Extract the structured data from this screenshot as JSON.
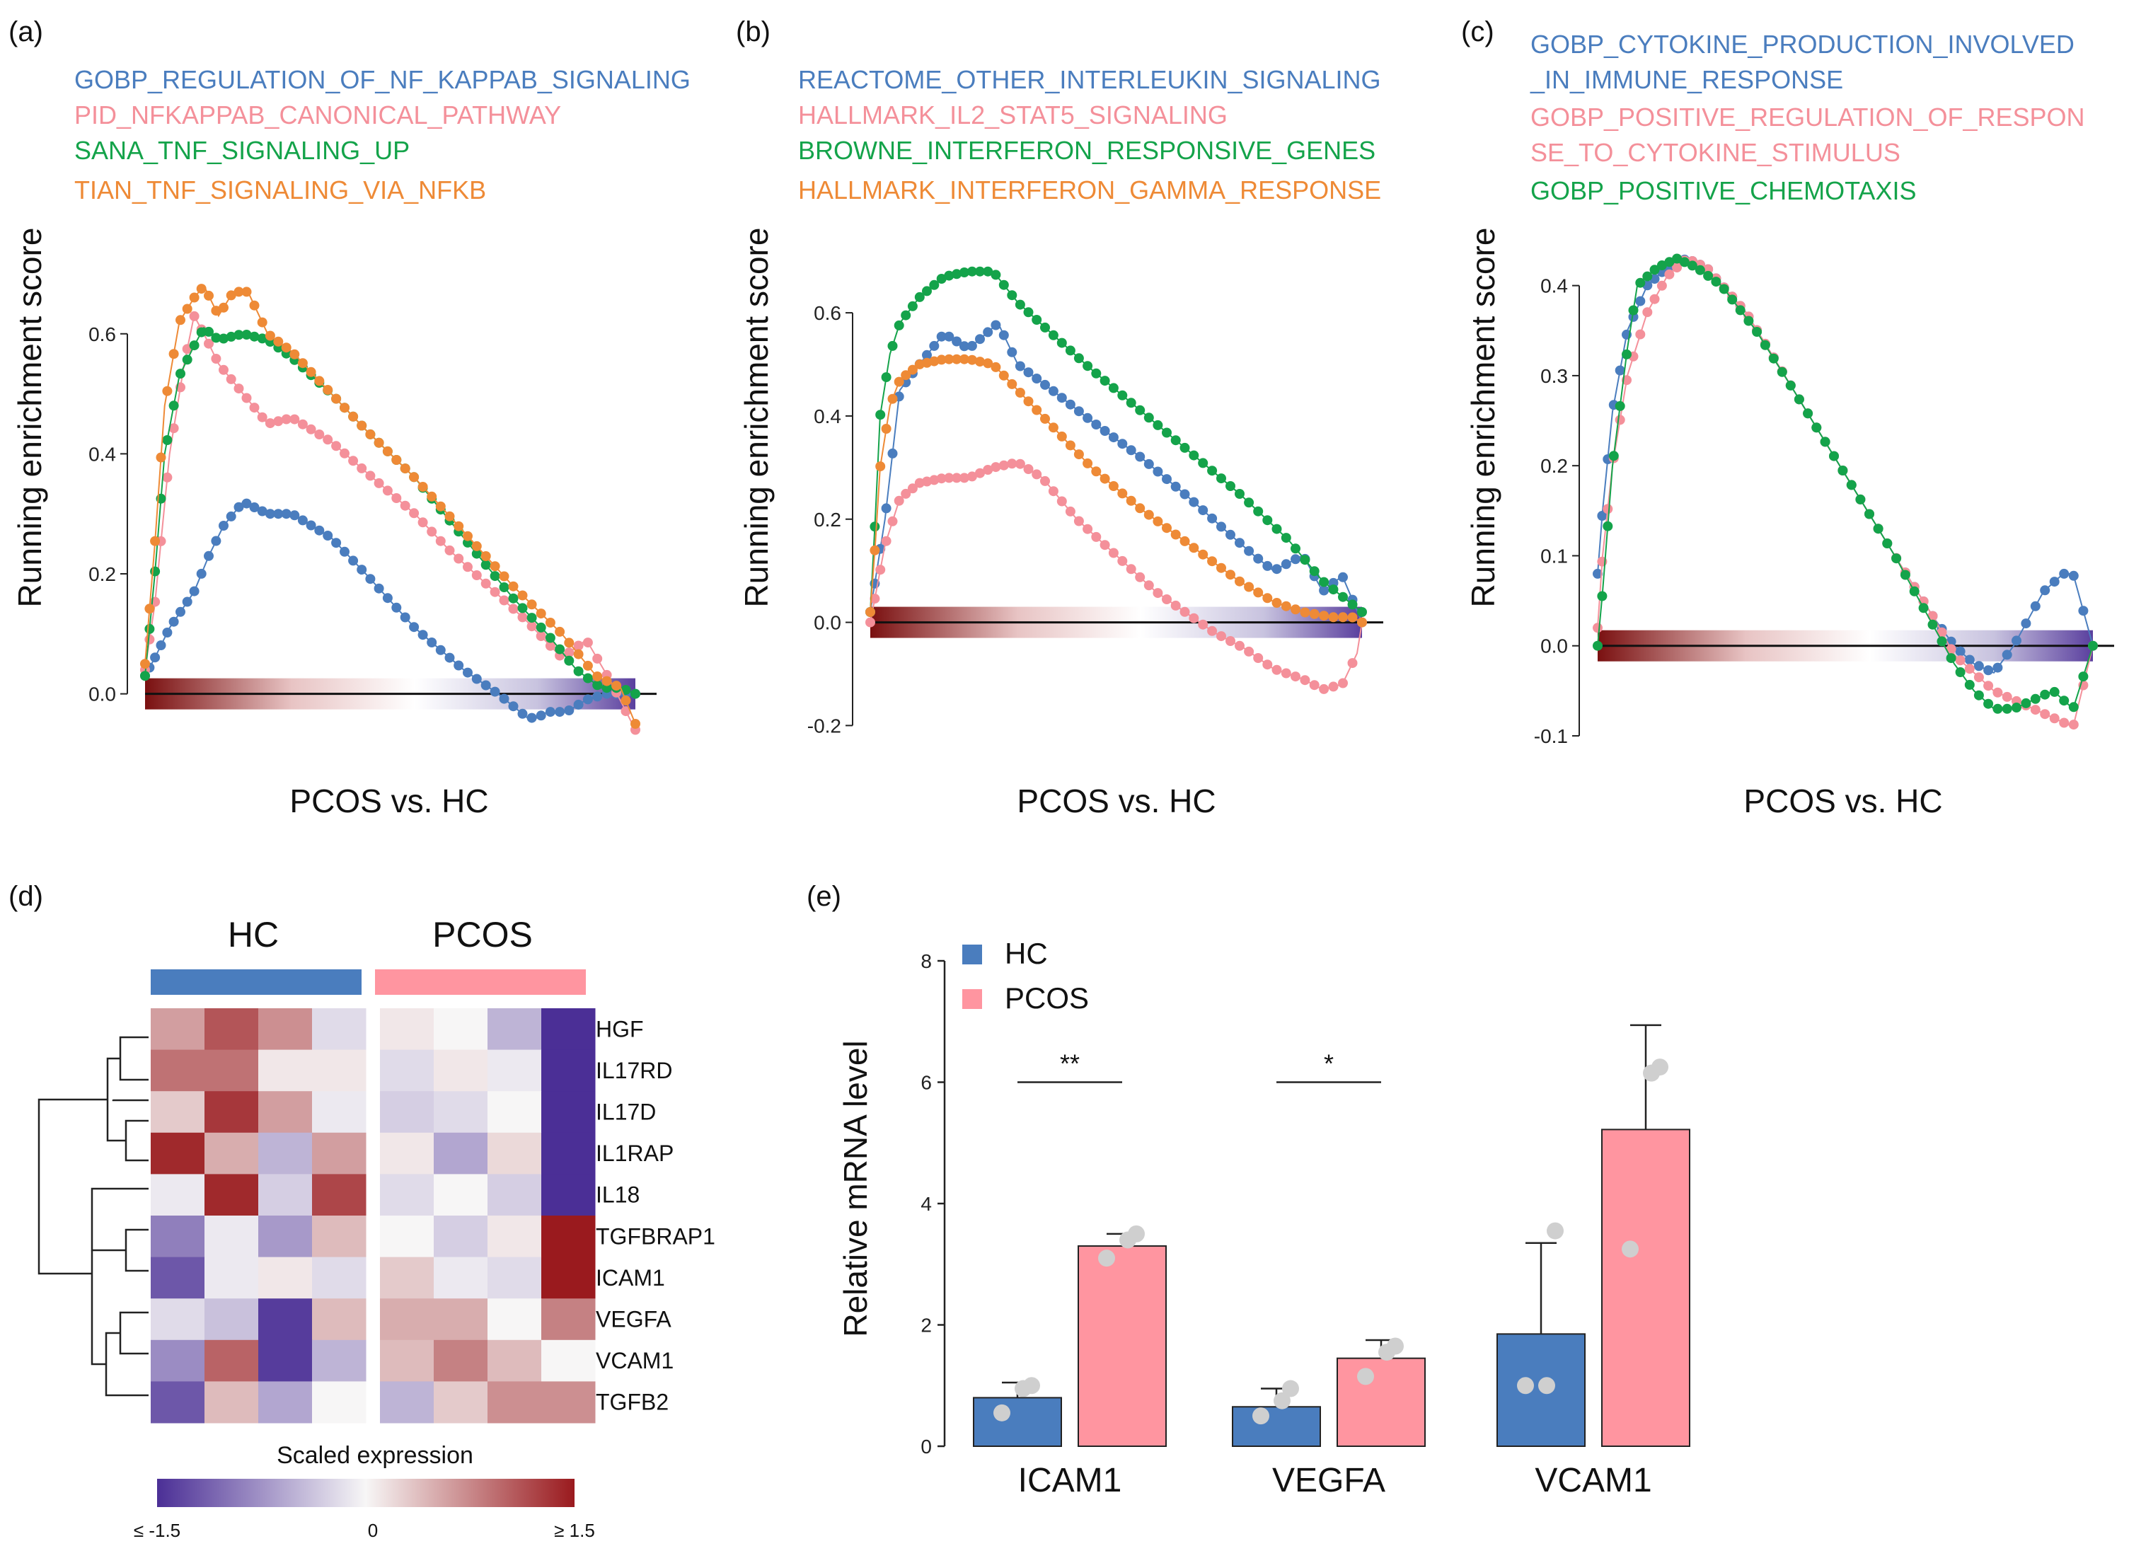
{
  "colors": {
    "blue": "#4A7DBE",
    "pink": "#F4909A",
    "green": "#14A34A",
    "orange": "#EE8A36",
    "heat_low": "#5A3F9E",
    "heat_mid": "#F7F6F6",
    "heat_high": "#9A1A1E",
    "hc_bar": "#4A7DBE",
    "pcos_bar": "#FF95A0"
  },
  "chart_data": [
    {
      "panel": "(a)",
      "type": "line",
      "gene_sets": [
        {
          "name": "GOBP_REGULATION_OF_NF_KAPPAB_SIGNALING",
          "color": "blue"
        },
        {
          "name": "PID_NFKAPPAB_CANONICAL_PATHWAY",
          "color": "pink"
        },
        {
          "name": "SANA_TNF_SIGNALING_UP",
          "color": "green"
        },
        {
          "name": "TIAN_TNF_SIGNALING_VIA_NFKB",
          "color": "orange"
        }
      ],
      "ylabel": "Running enrichment score",
      "xlabel": "PCOS vs. HC",
      "ylim": [
        -0.07,
        0.72
      ],
      "yticks": [
        "0.0",
        "0.2",
        "0.4",
        "0.6"
      ],
      "ytick_values": [
        0.0,
        0.2,
        0.4,
        0.6
      ],
      "series": [
        {
          "name": "GOBP_REGULATION_OF_NF_KAPPAB_SIGNALING",
          "color": "blue",
          "rank": [
            0,
            0.02,
            0.05,
            0.1,
            0.13,
            0.16,
            0.2,
            0.25,
            0.3,
            0.38,
            0.45,
            0.55,
            0.65,
            0.72,
            0.78,
            0.8,
            0.82,
            0.86,
            0.9,
            0.94,
            0.97,
            1.0
          ],
          "values": [
            0.03,
            0.06,
            0.11,
            0.17,
            0.23,
            0.28,
            0.32,
            0.3,
            0.3,
            0.26,
            0.2,
            0.11,
            0.04,
            0.0,
            -0.04,
            -0.04,
            -0.03,
            -0.03,
            -0.01,
            0.0,
            0.0,
            0.0
          ]
        },
        {
          "name": "PID_NFKAPPAB_CANONICAL_PATHWAY",
          "color": "pink",
          "rank": [
            0,
            0.02,
            0.05,
            0.08,
            0.1,
            0.12,
            0.15,
            0.2,
            0.25,
            0.3,
            0.38,
            0.45,
            0.55,
            0.62,
            0.7,
            0.78,
            0.85,
            0.9,
            0.95,
            1.0
          ],
          "values": [
            0.04,
            0.15,
            0.4,
            0.55,
            0.63,
            0.6,
            0.55,
            0.5,
            0.45,
            0.46,
            0.42,
            0.37,
            0.3,
            0.24,
            0.18,
            0.12,
            0.06,
            0.09,
            0.02,
            -0.06
          ]
        },
        {
          "name": "SANA_TNF_SIGNALING_UP",
          "color": "green",
          "rank": [
            0,
            0.02,
            0.04,
            0.07,
            0.1,
            0.12,
            0.15,
            0.2,
            0.25,
            0.3,
            0.38,
            0.45,
            0.55,
            0.65,
            0.75,
            0.82,
            0.88,
            0.93,
            0.97,
            1.0
          ],
          "values": [
            0.03,
            0.2,
            0.4,
            0.53,
            0.58,
            0.61,
            0.59,
            0.6,
            0.59,
            0.56,
            0.5,
            0.44,
            0.36,
            0.26,
            0.16,
            0.1,
            0.04,
            0.01,
            0.01,
            0.0
          ]
        },
        {
          "name": "TIAN_TNF_SIGNALING_VIA_NFKB",
          "color": "orange",
          "rank": [
            0,
            0.02,
            0.04,
            0.07,
            0.1,
            0.12,
            0.15,
            0.18,
            0.21,
            0.25,
            0.3,
            0.38,
            0.45,
            0.55,
            0.65,
            0.75,
            0.85,
            0.92,
            0.97,
            1.0
          ],
          "values": [
            0.05,
            0.25,
            0.48,
            0.62,
            0.66,
            0.68,
            0.63,
            0.67,
            0.67,
            0.6,
            0.57,
            0.5,
            0.44,
            0.36,
            0.27,
            0.18,
            0.1,
            0.03,
            0.01,
            -0.05
          ]
        }
      ]
    },
    {
      "panel": "(b)",
      "type": "line",
      "gene_sets": [
        {
          "name": "REACTOME_OTHER_INTERLEUKIN_SIGNALING",
          "color": "blue"
        },
        {
          "name": "HALLMARK_IL2_STAT5_SIGNALING",
          "color": "pink"
        },
        {
          "name": "BROWNE_INTERFERON_RESPONSIVE_GENES",
          "color": "green"
        },
        {
          "name": "HALLMARK_INTERFERON_GAMMA_RESPONSE",
          "color": "orange"
        }
      ],
      "ylabel": "Running enrichment score",
      "xlabel": "PCOS vs. HC",
      "ylim": [
        -0.22,
        0.74
      ],
      "yticks": [
        "-0.2",
        "0.0",
        "0.2",
        "0.4",
        "0.6"
      ],
      "ytick_values": [
        -0.2,
        0.0,
        0.2,
        0.4,
        0.6
      ],
      "series": [
        {
          "name": "REACTOME_OTHER_INTERLEUKIN_SIGNALING",
          "color": "blue",
          "rank": [
            0,
            0.03,
            0.06,
            0.1,
            0.15,
            0.2,
            0.26,
            0.3,
            0.37,
            0.45,
            0.55,
            0.65,
            0.72,
            0.78,
            0.82,
            0.88,
            0.92,
            0.96,
            1.0
          ],
          "values": [
            0.02,
            0.2,
            0.45,
            0.5,
            0.56,
            0.53,
            0.58,
            0.5,
            0.45,
            0.39,
            0.32,
            0.24,
            0.18,
            0.13,
            0.1,
            0.13,
            0.06,
            0.09,
            0.0
          ]
        },
        {
          "name": "HALLMARK_IL2_STAT5_SIGNALING",
          "color": "pink",
          "rank": [
            0,
            0.01,
            0.03,
            0.06,
            0.1,
            0.15,
            0.2,
            0.25,
            0.3,
            0.35,
            0.42,
            0.5,
            0.58,
            0.64,
            0.7,
            0.76,
            0.82,
            0.88,
            0.92,
            0.96,
            0.99,
            1.0
          ],
          "values": [
            0.0,
            0.05,
            0.15,
            0.24,
            0.27,
            0.28,
            0.28,
            0.3,
            0.31,
            0.28,
            0.2,
            0.13,
            0.06,
            0.02,
            -0.02,
            -0.05,
            -0.09,
            -0.11,
            -0.13,
            -0.12,
            -0.06,
            0.0
          ]
        },
        {
          "name": "BROWNE_INTERFERON_RESPONSIVE_GENES",
          "color": "green",
          "rank": [
            0,
            0.01,
            0.02,
            0.04,
            0.06,
            0.1,
            0.15,
            0.2,
            0.25,
            0.3,
            0.38,
            0.45,
            0.55,
            0.65,
            0.75,
            0.85,
            0.92,
            1.0
          ],
          "values": [
            0.02,
            0.2,
            0.4,
            0.52,
            0.58,
            0.63,
            0.67,
            0.68,
            0.68,
            0.62,
            0.55,
            0.49,
            0.41,
            0.33,
            0.25,
            0.16,
            0.08,
            0.02
          ]
        },
        {
          "name": "HALLMARK_INTERFERON_GAMMA_RESPONSE",
          "color": "orange",
          "rank": [
            0,
            0.01,
            0.02,
            0.04,
            0.06,
            0.1,
            0.15,
            0.2,
            0.25,
            0.3,
            0.38,
            0.45,
            0.55,
            0.65,
            0.75,
            0.82,
            0.88,
            0.94,
            0.98,
            1.0
          ],
          "values": [
            0.02,
            0.15,
            0.3,
            0.42,
            0.47,
            0.5,
            0.51,
            0.51,
            0.5,
            0.45,
            0.37,
            0.3,
            0.22,
            0.15,
            0.08,
            0.04,
            0.02,
            0.01,
            0.01,
            0.0
          ]
        }
      ]
    },
    {
      "panel": "(c)",
      "type": "line",
      "gene_sets": [
        {
          "name": "GOBP_CYTOKINE_PRODUCTION_INVOLVED",
          "color": "blue"
        },
        {
          "name": "_IN_IMMUNE_RESPONSE",
          "color": "blue"
        },
        {
          "name": "GOBP_POSITIVE_REGULATION_OF_RESPON",
          "color": "pink"
        },
        {
          "name": "SE_TO_CYTOKINE_STIMULUS",
          "color": "pink"
        },
        {
          "name": "GOBP_POSITIVE_CHEMOTAXIS",
          "color": "green"
        }
      ],
      "ylabel": "Running enrichment score",
      "xlabel": "PCOS vs. HC",
      "ylim": [
        -0.1,
        0.45
      ],
      "yticks": [
        "-0.1",
        "0.0",
        "0.1",
        "0.2",
        "0.3",
        "0.4"
      ],
      "ytick_values": [
        -0.1,
        0.0,
        0.1,
        0.2,
        0.3,
        0.4
      ],
      "series": [
        {
          "name": "GOBP_CYTOKINE_PRODUCTION_INVOLVED_IN_IMMUNE_RESPONSE",
          "color": "blue",
          "rank": [
            0,
            0.01,
            0.03,
            0.06,
            0.1,
            0.14,
            0.18,
            0.22,
            0.3,
            0.4,
            0.5,
            0.6,
            0.68,
            0.72,
            0.76,
            0.8,
            0.84,
            0.86,
            0.88,
            0.9,
            0.92,
            0.94,
            0.96,
            1.0
          ],
          "values": [
            0.08,
            0.15,
            0.26,
            0.35,
            0.4,
            0.42,
            0.43,
            0.42,
            0.37,
            0.28,
            0.19,
            0.1,
            0.03,
            0.0,
            -0.02,
            -0.03,
            0.0,
            0.02,
            0.04,
            0.06,
            0.07,
            0.08,
            0.08,
            0.0
          ]
        },
        {
          "name": "GOBP_POSITIVE_REGULATION_OF_RESPONSE_TO_CYTOKINE_STIMULUS",
          "color": "pink",
          "rank": [
            0,
            0.01,
            0.03,
            0.06,
            0.1,
            0.14,
            0.18,
            0.22,
            0.3,
            0.4,
            0.5,
            0.6,
            0.68,
            0.72,
            0.76,
            0.8,
            0.84,
            0.88,
            0.92,
            0.96,
            1.0
          ],
          "values": [
            0.02,
            0.1,
            0.2,
            0.3,
            0.37,
            0.41,
            0.43,
            0.42,
            0.37,
            0.28,
            0.19,
            0.1,
            0.03,
            -0.01,
            -0.03,
            -0.05,
            -0.06,
            -0.07,
            -0.08,
            -0.09,
            0.0
          ]
        },
        {
          "name": "GOBP_POSITIVE_CHEMOTAXIS",
          "color": "green",
          "rank": [
            0,
            0.01,
            0.03,
            0.06,
            0.08,
            0.12,
            0.16,
            0.2,
            0.25,
            0.32,
            0.4,
            0.5,
            0.6,
            0.68,
            0.72,
            0.76,
            0.8,
            0.84,
            0.88,
            0.92,
            0.96,
            1.0
          ],
          "values": [
            0.0,
            0.06,
            0.2,
            0.33,
            0.4,
            0.42,
            0.43,
            0.42,
            0.4,
            0.35,
            0.28,
            0.19,
            0.1,
            0.02,
            -0.02,
            -0.05,
            -0.07,
            -0.07,
            -0.06,
            -0.05,
            -0.07,
            0.0
          ]
        }
      ]
    },
    {
      "panel": "(d)",
      "type": "heatmap",
      "groups": [
        "HC",
        "PCOS"
      ],
      "rows": [
        "HGF",
        "IL17RD",
        "IL17D",
        "IL1RAP",
        "IL18",
        "TGFBRAP1",
        "ICAM1",
        "VEGFA",
        "VCAM1",
        "TGFB2"
      ],
      "values": [
        [
          0.6,
          1.1,
          0.7,
          -0.2,
          0.1,
          0.0,
          -0.5,
          -1.5
        ],
        [
          0.9,
          0.9,
          0.1,
          0.1,
          -0.2,
          0.1,
          -0.1,
          -1.5
        ],
        [
          0.3,
          1.3,
          0.6,
          -0.1,
          -0.3,
          -0.2,
          0.0,
          -1.5
        ],
        [
          1.4,
          0.5,
          -0.5,
          0.6,
          0.1,
          -0.6,
          0.2,
          -1.5
        ],
        [
          -0.1,
          1.4,
          -0.3,
          1.2,
          -0.2,
          0.0,
          -0.3,
          -1.5
        ],
        [
          -0.9,
          -0.1,
          -0.7,
          0.4,
          0.0,
          -0.3,
          0.1,
          1.5
        ],
        [
          -1.2,
          -0.1,
          0.1,
          -0.2,
          0.3,
          -0.1,
          -0.2,
          1.5
        ],
        [
          -0.2,
          -0.4,
          -1.4,
          0.4,
          0.5,
          0.5,
          0.0,
          0.8
        ],
        [
          -0.8,
          1.0,
          -1.4,
          -0.5,
          0.4,
          0.8,
          0.4,
          0.0
        ],
        [
          -1.2,
          0.4,
          -0.6,
          0.0,
          -0.5,
          0.3,
          0.7,
          0.7
        ]
      ],
      "legend_title": "Scaled expression",
      "legend_ticks": [
        "≤ -1.5",
        "0",
        "≥ 1.5"
      ]
    },
    {
      "panel": "(e)",
      "type": "bar",
      "ylabel": "Relative mRNA level",
      "categories": [
        "ICAM1",
        "VEGFA",
        "VCAM1"
      ],
      "ylim": [
        0,
        8
      ],
      "yticks": [
        "0",
        "2",
        "4",
        "6",
        "8"
      ],
      "ytick_values": [
        0,
        2,
        4,
        6,
        8
      ],
      "series": [
        {
          "name": "HC",
          "color": "hc_bar",
          "values": [
            0.8,
            0.65,
            1.85
          ],
          "errors": [
            0.25,
            0.3,
            1.5
          ],
          "points": [
            [
              0.55,
              0.95,
              1.0
            ],
            [
              0.5,
              0.75,
              0.95
            ],
            [
              1.0,
              1.0,
              3.55
            ]
          ]
        },
        {
          "name": "PCOS",
          "color": "pcos_bar",
          "values": [
            3.3,
            1.45,
            5.22
          ],
          "errors": [
            0.2,
            0.3,
            1.72
          ],
          "points": [
            [
              3.1,
              3.4,
              3.5
            ],
            [
              1.15,
              1.55,
              1.65
            ],
            [
              3.25,
              6.15,
              6.25
            ]
          ]
        }
      ],
      "legend": [
        "HC",
        "PCOS"
      ],
      "significance": [
        {
          "category": "ICAM1",
          "label": "**",
          "y": 6.0
        },
        {
          "category": "VEGFA",
          "label": "*",
          "y": 6.0
        }
      ]
    }
  ]
}
